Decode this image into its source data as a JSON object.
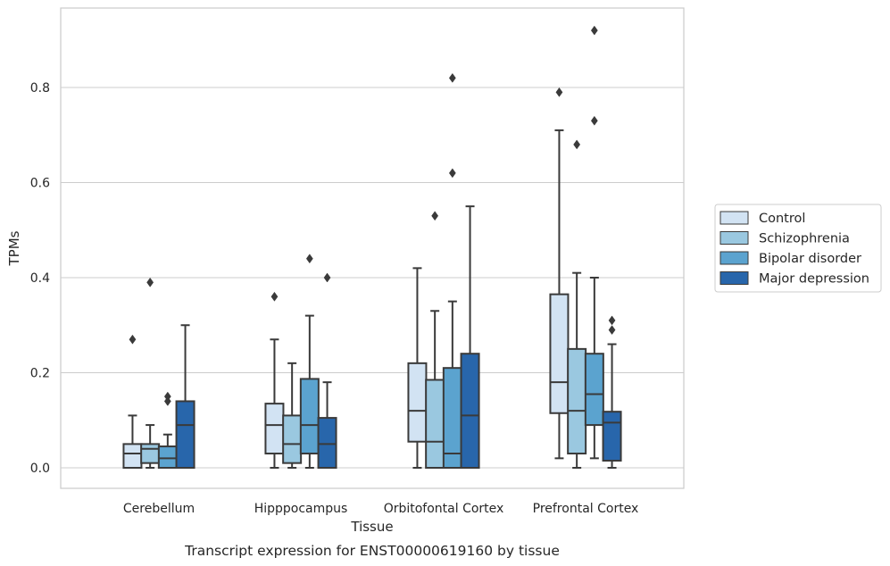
{
  "chart_data": {
    "type": "boxplot",
    "xlabel": "Tissue",
    "ylabel": "TPMs",
    "caption": "Transcript expression for ENST00000619160 by tissue",
    "ylim": [
      -0.045,
      0.97
    ],
    "yticks": [
      0.0,
      0.2,
      0.4,
      0.6,
      0.8
    ],
    "ytick_labels": [
      "0.0",
      "0.2",
      "0.4",
      "0.6",
      "0.8"
    ],
    "grid": "horizontal",
    "legend_position": "right",
    "categories": [
      "Cerebellum",
      "Hipppocampus",
      "Orbitofontal Cortex",
      "Prefrontal Cortex"
    ],
    "series": [
      {
        "name": "Control",
        "color": "#d2e3f3",
        "boxes": [
          {
            "whislo": 0.0,
            "q1": 0.0,
            "med": 0.03,
            "q3": 0.05,
            "whishi": 0.11,
            "fliers": [
              0.27
            ]
          },
          {
            "whislo": 0.0,
            "q1": 0.03,
            "med": 0.09,
            "q3": 0.135,
            "whishi": 0.27,
            "fliers": [
              0.36
            ]
          },
          {
            "whislo": 0.0,
            "q1": 0.055,
            "med": 0.12,
            "q3": 0.22,
            "whishi": 0.42,
            "fliers": []
          },
          {
            "whislo": 0.02,
            "q1": 0.115,
            "med": 0.18,
            "q3": 0.365,
            "whishi": 0.71,
            "fliers": [
              0.79
            ]
          }
        ]
      },
      {
        "name": "Schizophrenia",
        "color": "#9ac8e0",
        "boxes": [
          {
            "whislo": 0.0,
            "q1": 0.01,
            "med": 0.04,
            "q3": 0.05,
            "whishi": 0.09,
            "fliers": [
              0.39
            ]
          },
          {
            "whislo": 0.0,
            "q1": 0.01,
            "med": 0.05,
            "q3": 0.11,
            "whishi": 0.22,
            "fliers": []
          },
          {
            "whislo": 0.0,
            "q1": 0.0,
            "med": 0.055,
            "q3": 0.185,
            "whishi": 0.33,
            "fliers": [
              0.53
            ]
          },
          {
            "whislo": 0.0,
            "q1": 0.03,
            "med": 0.12,
            "q3": 0.25,
            "whishi": 0.41,
            "fliers": [
              0.68
            ]
          }
        ]
      },
      {
        "name": "Bipolar disorder",
        "color": "#5ba3cf",
        "boxes": [
          {
            "whislo": 0.0,
            "q1": 0.0,
            "med": 0.02,
            "q3": 0.045,
            "whishi": 0.07,
            "fliers": [
              0.14,
              0.15
            ]
          },
          {
            "whislo": 0.0,
            "q1": 0.03,
            "med": 0.09,
            "q3": 0.187,
            "whishi": 0.32,
            "fliers": [
              0.44
            ]
          },
          {
            "whislo": 0.0,
            "q1": 0.0,
            "med": 0.03,
            "q3": 0.21,
            "whishi": 0.35,
            "fliers": [
              0.62,
              0.82
            ]
          },
          {
            "whislo": 0.02,
            "q1": 0.09,
            "med": 0.155,
            "q3": 0.24,
            "whishi": 0.4,
            "fliers": [
              0.73,
              0.92
            ]
          }
        ]
      },
      {
        "name": "Major depression",
        "color": "#2866ab",
        "boxes": [
          {
            "whislo": 0.0,
            "q1": 0.0,
            "med": 0.09,
            "q3": 0.14,
            "whishi": 0.3,
            "fliers": []
          },
          {
            "whislo": 0.0,
            "q1": 0.0,
            "med": 0.05,
            "q3": 0.105,
            "whishi": 0.18,
            "fliers": [
              0.4
            ]
          },
          {
            "whislo": 0.0,
            "q1": 0.0,
            "med": 0.11,
            "q3": 0.24,
            "whishi": 0.55,
            "fliers": []
          },
          {
            "whislo": 0.0,
            "q1": 0.015,
            "med": 0.095,
            "q3": 0.118,
            "whishi": 0.26,
            "fliers": [
              0.29,
              0.31
            ]
          }
        ]
      }
    ]
  }
}
